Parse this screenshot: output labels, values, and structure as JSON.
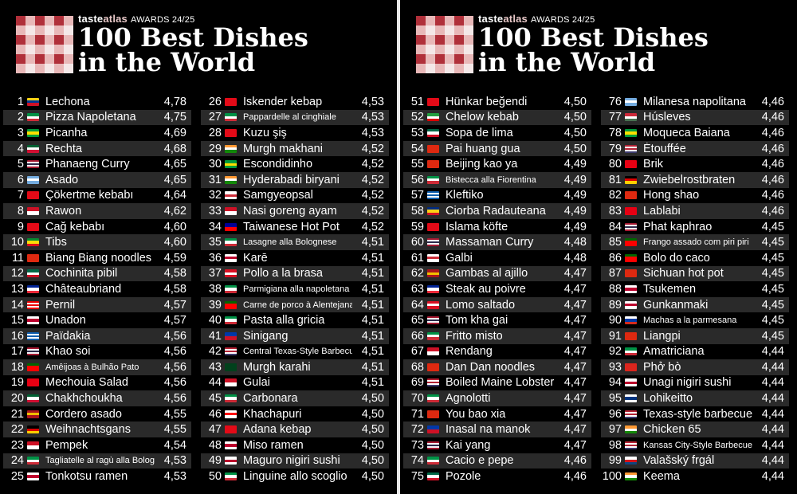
{
  "header": {
    "brand_taste": "taste",
    "brand_atlas": "atlas",
    "brand_awards": "AWARDS 24/25",
    "title_line1": "100 Best Dishes",
    "title_line2": "in the World"
  },
  "colors": {
    "logo_red": "#b0303a",
    "logo_pink": "#e8b8b8",
    "logo_white": "#f4e8e8",
    "row_alt": "#2a2a2a"
  },
  "columns": [
    [
      {
        "rank": "1",
        "name": "Lechona",
        "score": "4,78",
        "flag": [
          "#fcd116",
          "#003893",
          "#ce1126"
        ]
      },
      {
        "rank": "2",
        "name": "Pizza Napoletana",
        "score": "4,75",
        "flag": [
          "#009246",
          "#ffffff",
          "#ce2b37"
        ]
      },
      {
        "rank": "3",
        "name": "Picanha",
        "score": "4,69",
        "flag": [
          "#009c3b",
          "#ffdf00",
          "#009c3b"
        ]
      },
      {
        "rank": "4",
        "name": "Rechta",
        "score": "4,68",
        "flag": [
          "#006233",
          "#ffffff",
          "#d21034"
        ]
      },
      {
        "rank": "5",
        "name": "Phanaeng Curry",
        "score": "4,65",
        "flag": [
          "#a51931",
          "#f4f5f8",
          "#2d2a4a",
          "#f4f5f8",
          "#a51931"
        ]
      },
      {
        "rank": "6",
        "name": "Asado",
        "score": "4,65",
        "flag": [
          "#74acdf",
          "#ffffff",
          "#74acdf"
        ]
      },
      {
        "rank": "7",
        "name": "Çökertme kebabı",
        "score": "4,64",
        "flag": [
          "#e30a17",
          "#e30a17",
          "#e30a17"
        ]
      },
      {
        "rank": "8",
        "name": "Rawon",
        "score": "4,62",
        "flag": [
          "#ce1126",
          "#ffffff"
        ]
      },
      {
        "rank": "9",
        "name": "Cağ kebabı",
        "score": "4,60",
        "flag": [
          "#e30a17",
          "#e30a17",
          "#e30a17"
        ]
      },
      {
        "rank": "10",
        "name": "Tibs",
        "score": "4,60",
        "flag": [
          "#078930",
          "#fcdd09",
          "#da121a"
        ]
      },
      {
        "rank": "11",
        "name": "Biang Biang noodles",
        "score": "4,59",
        "flag": [
          "#de2910",
          "#de2910"
        ]
      },
      {
        "rank": "12",
        "name": "Cochinita pibil",
        "score": "4,58",
        "flag": [
          "#006847",
          "#ffffff",
          "#ce1126"
        ]
      },
      {
        "rank": "13",
        "name": "Châteaubriand",
        "score": "4,58",
        "flag": [
          "#002395",
          "#ffffff",
          "#ed2939"
        ]
      },
      {
        "rank": "14",
        "name": "Pernil",
        "score": "4,57",
        "flag": [
          "#ed0000",
          "#ffffff",
          "#ed0000",
          "#ffffff",
          "#ed0000"
        ]
      },
      {
        "rank": "15",
        "name": "Unadon",
        "score": "4,57",
        "flag": [
          "#ffffff",
          "#bc002d",
          "#ffffff"
        ]
      },
      {
        "rank": "16",
        "name": "Païdakia",
        "score": "4,56",
        "flag": [
          "#0d5eaf",
          "#ffffff",
          "#0d5eaf",
          "#ffffff",
          "#0d5eaf"
        ]
      },
      {
        "rank": "17",
        "name": "Khao soi",
        "score": "4,56",
        "flag": [
          "#a51931",
          "#f4f5f8",
          "#2d2a4a",
          "#f4f5f8",
          "#a51931"
        ]
      },
      {
        "rank": "18",
        "name": "Amêijoas à Bulhão Pato",
        "score": "4,56",
        "flag": [
          "#006600",
          "#ff0000",
          "#ff0000"
        ],
        "small": true
      },
      {
        "rank": "19",
        "name": "Mechouia Salad",
        "score": "4,56",
        "flag": [
          "#e70013",
          "#e70013"
        ]
      },
      {
        "rank": "20",
        "name": "Chakhchoukha",
        "score": "4,56",
        "flag": [
          "#006233",
          "#ffffff",
          "#d21034"
        ]
      },
      {
        "rank": "21",
        "name": "Cordero asado",
        "score": "4,55",
        "flag": [
          "#aa151b",
          "#f1bf00",
          "#aa151b"
        ]
      },
      {
        "rank": "22",
        "name": "Weihnachtsgans",
        "score": "4,55",
        "flag": [
          "#000000",
          "#dd0000",
          "#ffce00"
        ]
      },
      {
        "rank": "23",
        "name": "Pempek",
        "score": "4,54",
        "flag": [
          "#ce1126",
          "#ffffff"
        ]
      },
      {
        "rank": "24",
        "name": "Tagliatelle al ragù alla Bolognese",
        "score": "4,53",
        "flag": [
          "#009246",
          "#ffffff",
          "#ce2b37"
        ],
        "small": true
      },
      {
        "rank": "25",
        "name": "Tonkotsu ramen",
        "score": "4,53",
        "flag": [
          "#ffffff",
          "#bc002d",
          "#ffffff"
        ]
      }
    ],
    [
      {
        "rank": "26",
        "name": "İskender kebap",
        "score": "4,53",
        "flag": [
          "#e30a17",
          "#e30a17"
        ]
      },
      {
        "rank": "27",
        "name": "Pappardelle al cinghiale",
        "score": "4,53",
        "flag": [
          "#009246",
          "#ffffff",
          "#ce2b37"
        ],
        "small": true
      },
      {
        "rank": "28",
        "name": "Kuzu şiş",
        "score": "4,53",
        "flag": [
          "#e30a17",
          "#e30a17"
        ]
      },
      {
        "rank": "29",
        "name": "Murgh makhani",
        "score": "4,52",
        "flag": [
          "#ff9933",
          "#ffffff",
          "#138808"
        ]
      },
      {
        "rank": "30",
        "name": "Escondidinho",
        "score": "4,52",
        "flag": [
          "#009c3b",
          "#ffdf00",
          "#009c3b"
        ]
      },
      {
        "rank": "31",
        "name": "Hyderabadi biryani",
        "score": "4,52",
        "flag": [
          "#ff9933",
          "#ffffff",
          "#138808"
        ]
      },
      {
        "rank": "32",
        "name": "Samgyeopsal",
        "score": "4,52",
        "flag": [
          "#ffffff",
          "#cd2e3a",
          "#ffffff"
        ]
      },
      {
        "rank": "33",
        "name": "Nasi goreng ayam",
        "score": "4,52",
        "flag": [
          "#ce1126",
          "#ffffff"
        ]
      },
      {
        "rank": "34",
        "name": "Taiwanese Hot Pot",
        "score": "4,52",
        "flag": [
          "#000095",
          "#fe0000"
        ]
      },
      {
        "rank": "35",
        "name": "Lasagne alla Bolognese",
        "score": "4,51",
        "flag": [
          "#009246",
          "#ffffff",
          "#ce2b37"
        ],
        "small": true
      },
      {
        "rank": "36",
        "name": "Karē",
        "score": "4,51",
        "flag": [
          "#ffffff",
          "#bc002d",
          "#ffffff"
        ]
      },
      {
        "rank": "37",
        "name": "Pollo a la brasa",
        "score": "4,51",
        "flag": [
          "#d91023",
          "#ffffff",
          "#d91023"
        ]
      },
      {
        "rank": "38",
        "name": "Parmigiana alla napoletana",
        "score": "4,51",
        "flag": [
          "#009246",
          "#ffffff",
          "#ce2b37"
        ],
        "small": true
      },
      {
        "rank": "39",
        "name": "Carne de porco à Alentejana",
        "score": "4,51",
        "flag": [
          "#006600",
          "#ff0000",
          "#ff0000"
        ],
        "small": true
      },
      {
        "rank": "40",
        "name": "Pasta alla gricia",
        "score": "4,51",
        "flag": [
          "#009246",
          "#ffffff",
          "#ce2b37"
        ]
      },
      {
        "rank": "41",
        "name": "Sinigang",
        "score": "4,51",
        "flag": [
          "#0038a8",
          "#ce1126"
        ]
      },
      {
        "rank": "42",
        "name": "Central Texas-Style Barbecue",
        "score": "4,51",
        "flag": [
          "#b22234",
          "#ffffff",
          "#b22234",
          "#ffffff",
          "#3c3b6e"
        ],
        "small": true
      },
      {
        "rank": "43",
        "name": "Murgh karahi",
        "score": "4,51",
        "flag": [
          "#01411c",
          "#01411c"
        ]
      },
      {
        "rank": "44",
        "name": "Gulai",
        "score": "4,51",
        "flag": [
          "#ce1126",
          "#ffffff"
        ]
      },
      {
        "rank": "45",
        "name": "Carbonara",
        "score": "4,50",
        "flag": [
          "#009246",
          "#ffffff",
          "#ce2b37"
        ]
      },
      {
        "rank": "46",
        "name": "Khachapuri",
        "score": "4,50",
        "flag": [
          "#ffffff",
          "#ff0000",
          "#ffffff"
        ]
      },
      {
        "rank": "47",
        "name": "Adana kebap",
        "score": "4,50",
        "flag": [
          "#e30a17",
          "#e30a17"
        ]
      },
      {
        "rank": "48",
        "name": "Miso ramen",
        "score": "4,50",
        "flag": [
          "#ffffff",
          "#bc002d",
          "#ffffff"
        ]
      },
      {
        "rank": "49",
        "name": "Maguro nigiri sushi",
        "score": "4,50",
        "flag": [
          "#ffffff",
          "#bc002d",
          "#ffffff"
        ]
      },
      {
        "rank": "50",
        "name": "Linguine allo scoglio",
        "score": "4,50",
        "flag": [
          "#009246",
          "#ffffff",
          "#ce2b37"
        ]
      }
    ],
    [
      {
        "rank": "51",
        "name": "Hünkar beğendi",
        "score": "4,50",
        "flag": [
          "#e30a17",
          "#e30a17"
        ]
      },
      {
        "rank": "52",
        "name": "Chelow kebab",
        "score": "4,50",
        "flag": [
          "#239f40",
          "#ffffff",
          "#da0000"
        ]
      },
      {
        "rank": "53",
        "name": "Sopa de lima",
        "score": "4,50",
        "flag": [
          "#006847",
          "#ffffff",
          "#ce1126"
        ]
      },
      {
        "rank": "54",
        "name": "Pai huang gua",
        "score": "4,50",
        "flag": [
          "#de2910",
          "#de2910"
        ]
      },
      {
        "rank": "55",
        "name": "Beijing kao ya",
        "score": "4,49",
        "flag": [
          "#de2910",
          "#de2910"
        ]
      },
      {
        "rank": "56",
        "name": "Bistecca alla Fiorentina",
        "score": "4,49",
        "flag": [
          "#009246",
          "#ffffff",
          "#ce2b37"
        ],
        "small": true
      },
      {
        "rank": "57",
        "name": "Kleftiko",
        "score": "4,49",
        "flag": [
          "#0d5eaf",
          "#ffffff",
          "#0d5eaf",
          "#ffffff",
          "#0d5eaf"
        ]
      },
      {
        "rank": "58",
        "name": "Ciorba Radauteana",
        "score": "4,49",
        "flag": [
          "#002b7f",
          "#fcd116",
          "#ce1126"
        ]
      },
      {
        "rank": "59",
        "name": "Islama köfte",
        "score": "4,49",
        "flag": [
          "#e30a17",
          "#e30a17"
        ]
      },
      {
        "rank": "60",
        "name": "Massaman Curry",
        "score": "4,48",
        "flag": [
          "#a51931",
          "#f4f5f8",
          "#2d2a4a",
          "#f4f5f8",
          "#a51931"
        ]
      },
      {
        "rank": "61",
        "name": "Galbi",
        "score": "4,48",
        "flag": [
          "#ffffff",
          "#cd2e3a",
          "#ffffff"
        ]
      },
      {
        "rank": "62",
        "name": "Gambas al ajillo",
        "score": "4,47",
        "flag": [
          "#aa151b",
          "#f1bf00",
          "#aa151b"
        ]
      },
      {
        "rank": "63",
        "name": "Steak au poivre",
        "score": "4,47",
        "flag": [
          "#002395",
          "#ffffff",
          "#ed2939"
        ]
      },
      {
        "rank": "64",
        "name": "Lomo saltado",
        "score": "4,47",
        "flag": [
          "#d91023",
          "#ffffff",
          "#d91023"
        ]
      },
      {
        "rank": "65",
        "name": "Tom kha gai",
        "score": "4,47",
        "flag": [
          "#a51931",
          "#f4f5f8",
          "#2d2a4a",
          "#f4f5f8",
          "#a51931"
        ]
      },
      {
        "rank": "66",
        "name": "Fritto misto",
        "score": "4,47",
        "flag": [
          "#009246",
          "#ffffff",
          "#ce2b37"
        ]
      },
      {
        "rank": "67",
        "name": "Rendang",
        "score": "4,47",
        "flag": [
          "#ce1126",
          "#ffffff"
        ]
      },
      {
        "rank": "68",
        "name": "Dan Dan noodles",
        "score": "4,47",
        "flag": [
          "#de2910",
          "#de2910"
        ]
      },
      {
        "rank": "69",
        "name": "Boiled Maine Lobster",
        "score": "4,47",
        "flag": [
          "#b22234",
          "#ffffff",
          "#b22234",
          "#ffffff",
          "#3c3b6e"
        ]
      },
      {
        "rank": "70",
        "name": "Agnolotti",
        "score": "4,47",
        "flag": [
          "#009246",
          "#ffffff",
          "#ce2b37"
        ]
      },
      {
        "rank": "71",
        "name": "You bao xia",
        "score": "4,47",
        "flag": [
          "#de2910",
          "#de2910"
        ]
      },
      {
        "rank": "72",
        "name": "Inasal na manok",
        "score": "4,47",
        "flag": [
          "#0038a8",
          "#ce1126"
        ]
      },
      {
        "rank": "73",
        "name": "Kai yang",
        "score": "4,47",
        "flag": [
          "#a51931",
          "#f4f5f8",
          "#2d2a4a",
          "#f4f5f8",
          "#a51931"
        ]
      },
      {
        "rank": "74",
        "name": "Cacio e pepe",
        "score": "4,46",
        "flag": [
          "#009246",
          "#ffffff",
          "#ce2b37"
        ]
      },
      {
        "rank": "75",
        "name": "Pozole",
        "score": "4,46",
        "flag": [
          "#006847",
          "#ffffff",
          "#ce1126"
        ]
      }
    ],
    [
      {
        "rank": "76",
        "name": "Milanesa napolitana",
        "score": "4,46",
        "flag": [
          "#74acdf",
          "#ffffff",
          "#74acdf"
        ]
      },
      {
        "rank": "77",
        "name": "Húsleves",
        "score": "4,46",
        "flag": [
          "#ce2939",
          "#ffffff",
          "#477050"
        ]
      },
      {
        "rank": "78",
        "name": "Moqueca Baiana",
        "score": "4,46",
        "flag": [
          "#009c3b",
          "#ffdf00",
          "#009c3b"
        ]
      },
      {
        "rank": "79",
        "name": "Étouffée",
        "score": "4,46",
        "flag": [
          "#b22234",
          "#ffffff",
          "#b22234",
          "#ffffff",
          "#3c3b6e"
        ]
      },
      {
        "rank": "80",
        "name": "Brik",
        "score": "4,46",
        "flag": [
          "#e70013",
          "#e70013"
        ]
      },
      {
        "rank": "81",
        "name": "Zwiebelrostbraten",
        "score": "4,46",
        "flag": [
          "#000000",
          "#dd0000",
          "#ffce00"
        ]
      },
      {
        "rank": "82",
        "name": "Hong shao",
        "score": "4,46",
        "flag": [
          "#de2910",
          "#de2910"
        ]
      },
      {
        "rank": "83",
        "name": "Lablabi",
        "score": "4,46",
        "flag": [
          "#e70013",
          "#e70013"
        ]
      },
      {
        "rank": "84",
        "name": "Phat kaphrao",
        "score": "4,45",
        "flag": [
          "#a51931",
          "#f4f5f8",
          "#2d2a4a",
          "#f4f5f8",
          "#a51931"
        ]
      },
      {
        "rank": "85",
        "name": "Frango assado com piri piri",
        "score": "4,45",
        "flag": [
          "#006600",
          "#ff0000",
          "#ff0000"
        ],
        "small": true
      },
      {
        "rank": "86",
        "name": "Bolo do caco",
        "score": "4,45",
        "flag": [
          "#006600",
          "#ff0000",
          "#ff0000"
        ]
      },
      {
        "rank": "87",
        "name": "Sichuan hot pot",
        "score": "4,45",
        "flag": [
          "#de2910",
          "#de2910"
        ]
      },
      {
        "rank": "88",
        "name": "Tsukemen",
        "score": "4,45",
        "flag": [
          "#ffffff",
          "#bc002d",
          "#ffffff"
        ]
      },
      {
        "rank": "89",
        "name": "Gunkanmaki",
        "score": "4,45",
        "flag": [
          "#ffffff",
          "#bc002d",
          "#ffffff"
        ]
      },
      {
        "rank": "90",
        "name": "Machas a la parmesana",
        "score": "4,45",
        "flag": [
          "#ffffff",
          "#0039a6",
          "#d52b1e"
        ],
        "small": true
      },
      {
        "rank": "91",
        "name": "Liangpi",
        "score": "4,45",
        "flag": [
          "#de2910",
          "#de2910"
        ]
      },
      {
        "rank": "92",
        "name": "Amatriciana",
        "score": "4,44",
        "flag": [
          "#009246",
          "#ffffff",
          "#ce2b37"
        ]
      },
      {
        "rank": "93",
        "name": "Phở bò",
        "score": "4,44",
        "flag": [
          "#da251d",
          "#da251d"
        ]
      },
      {
        "rank": "94",
        "name": "Unagi nigiri sushi",
        "score": "4,44",
        "flag": [
          "#ffffff",
          "#bc002d",
          "#ffffff"
        ]
      },
      {
        "rank": "95",
        "name": "Lohikeitto",
        "score": "4,44",
        "flag": [
          "#ffffff",
          "#003580",
          "#ffffff"
        ]
      },
      {
        "rank": "96",
        "name": "Texas-style barbecue",
        "score": "4,44",
        "flag": [
          "#b22234",
          "#ffffff",
          "#b22234",
          "#ffffff",
          "#3c3b6e"
        ]
      },
      {
        "rank": "97",
        "name": "Chicken 65",
        "score": "4,44",
        "flag": [
          "#ff9933",
          "#ffffff",
          "#138808"
        ]
      },
      {
        "rank": "98",
        "name": "Kansas City-Style Barbecue",
        "score": "4,44",
        "flag": [
          "#b22234",
          "#ffffff",
          "#b22234",
          "#ffffff",
          "#3c3b6e"
        ],
        "small": true
      },
      {
        "rank": "99",
        "name": "Valašský frgál",
        "score": "4,44",
        "flag": [
          "#ffffff",
          "#d7141a",
          "#11457e"
        ]
      },
      {
        "rank": "100",
        "name": "Keema",
        "score": "4,44",
        "flag": [
          "#ff9933",
          "#ffffff",
          "#138808"
        ]
      }
    ]
  ]
}
